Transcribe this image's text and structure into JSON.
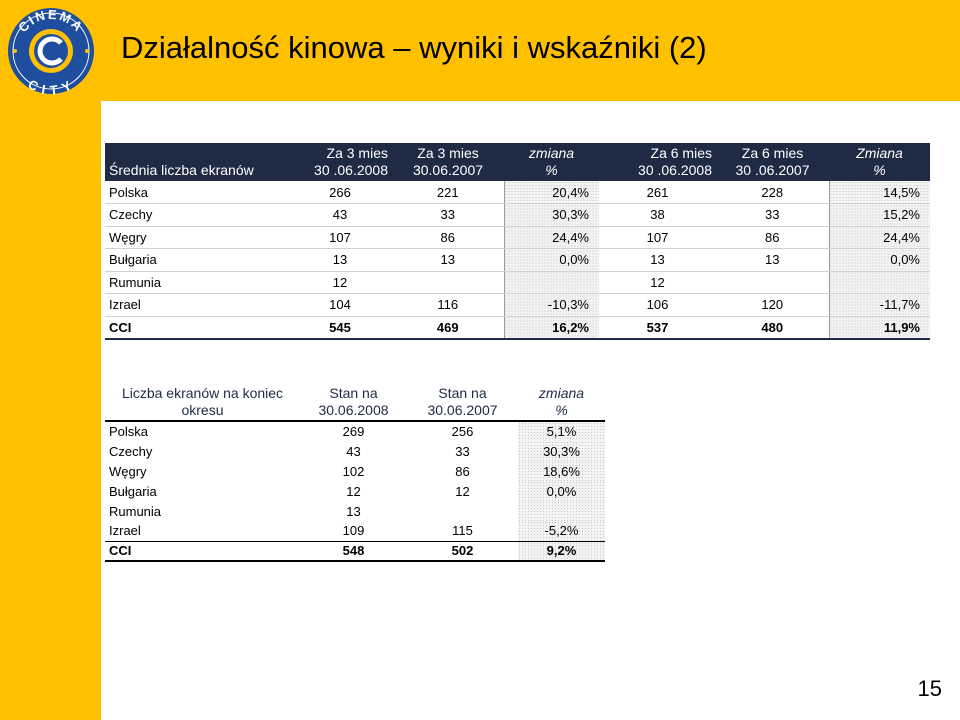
{
  "slide": {
    "title": "Działalność kinowa – wyniki i wskaźniki (2)",
    "page_number": "15",
    "logo_text": "CINEMA CITY",
    "colors": {
      "accent": "#FFC000",
      "header_bg": "#1F2A44"
    }
  },
  "table1": {
    "headers": [
      [
        "Średnia liczba ekranów"
      ],
      [
        "Za 3 mies",
        "30 .06.2008"
      ],
      [
        "Za 3 mies",
        "30.06.2007"
      ],
      [
        "zmiana",
        "%"
      ],
      [
        "Za 6 mies",
        "30 .06.2008"
      ],
      [
        "Za 6 mies",
        "30 .06.2007"
      ],
      [
        "Zmiana",
        "%"
      ]
    ],
    "rows": [
      [
        "Polska",
        "266",
        "221",
        "20,4%",
        "261",
        "228",
        "14,5%"
      ],
      [
        "Czechy",
        "43",
        "33",
        "30,3%",
        "38",
        "33",
        "15,2%"
      ],
      [
        "Węgry",
        "107",
        "86",
        "24,4%",
        "107",
        "86",
        "24,4%"
      ],
      [
        "Bułgaria",
        "13",
        "13",
        "0,0%",
        "13",
        "13",
        "0,0%"
      ],
      [
        "Rumunia",
        "12",
        "",
        "",
        "12",
        "",
        ""
      ],
      [
        "Izrael",
        "104",
        "116",
        "-10,3%",
        "106",
        "120",
        "-11,7%"
      ]
    ],
    "total": [
      "CCI",
      "545",
      "469",
      "16,2%",
      "537",
      "480",
      "11,9%"
    ]
  },
  "table2": {
    "headers": [
      [
        "Liczba ekranów na koniec",
        "okresu"
      ],
      [
        "Stan na",
        "30.06.2008"
      ],
      [
        "Stan na",
        "30.06.2007"
      ],
      [
        "zmiana",
        "%"
      ]
    ],
    "rows": [
      [
        "Polska",
        "269",
        "256",
        "5,1%"
      ],
      [
        "Czechy",
        "43",
        "33",
        "30,3%"
      ],
      [
        "Węgry",
        "102",
        "86",
        "18,6%"
      ],
      [
        "Bułgaria",
        "12",
        "12",
        "0,0%"
      ],
      [
        "Rumunia",
        "13",
        "",
        ""
      ],
      [
        "Izrael",
        "109",
        "115",
        "-5,2%"
      ]
    ],
    "total": [
      "CCI",
      "548",
      "502",
      "9,2%"
    ]
  }
}
